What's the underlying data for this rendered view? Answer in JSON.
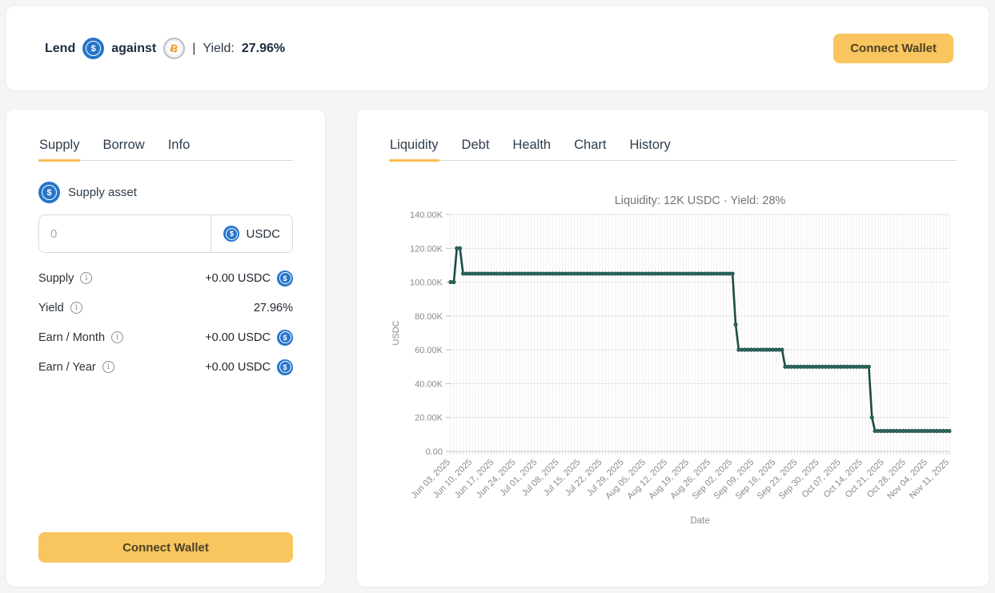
{
  "header": {
    "lend_label": "Lend",
    "against_label": "against",
    "separator": "|",
    "yield_label": "Yield:",
    "yield_value": "27.96%",
    "connect_wallet_label": "Connect Wallet"
  },
  "icons": {
    "usdc_glyph": "$",
    "btc_glyph": "Ƀ",
    "info_glyph": "i"
  },
  "left_panel": {
    "tabs": [
      {
        "label": "Supply",
        "active": true
      },
      {
        "label": "Borrow",
        "active": false
      },
      {
        "label": "Info",
        "active": false
      }
    ],
    "supply_asset_label": "Supply asset",
    "amount_input": {
      "value": "",
      "placeholder": "0"
    },
    "token_selector": {
      "label": "USDC"
    },
    "stats": [
      {
        "label": "Supply",
        "value": "+0.00 USDC"
      },
      {
        "label": "Yield",
        "value": "27.96%"
      },
      {
        "label": "Earn / Month",
        "value": "+0.00 USDC"
      },
      {
        "label": "Earn / Year",
        "value": "+0.00 USDC"
      }
    ],
    "connect_wallet_label": "Connect Wallet"
  },
  "right_panel": {
    "tabs": [
      {
        "label": "Liquidity",
        "active": true
      },
      {
        "label": "Debt",
        "active": false
      },
      {
        "label": "Health",
        "active": false
      },
      {
        "label": "Chart",
        "active": false
      },
      {
        "label": "History",
        "active": false
      }
    ]
  },
  "chart_data": {
    "type": "line",
    "title": "Liquidity: 12K USDC · Yield: 28%",
    "xlabel": "Date",
    "ylabel": "USDC",
    "ylim": [
      0,
      140000
    ],
    "y_tick_values": [
      0,
      20000,
      40000,
      60000,
      80000,
      100000,
      120000,
      140000
    ],
    "y_tick_labels": [
      "0.00",
      "20.00K",
      "40.00K",
      "60.00K",
      "80.00K",
      "100.00K",
      "120.00K",
      "140.00K"
    ],
    "start_date": "2025-06-03",
    "end_date": "2025-11-11",
    "point_interval": "daily",
    "x_tick_every_days": 7,
    "x_tick_labels": [
      "Jun 03, 2025",
      "Jun 10, 2025",
      "Jun 17, 2025",
      "Jun 24, 2025",
      "Jul 01, 2025",
      "Jul 08, 2025",
      "Jul 15, 2025",
      "Jul 22, 2025",
      "Jul 29, 2025",
      "Aug 05, 2025",
      "Aug 12, 2025",
      "Aug 19, 2025",
      "Aug 26, 2025",
      "Sep 02, 2025",
      "Sep 09, 2025",
      "Sep 16, 2025",
      "Sep 23, 2025",
      "Sep 30, 2025",
      "Oct 07, 2025",
      "Oct 14, 2025",
      "Oct 21, 2025",
      "Oct 28, 2025",
      "Nov 04, 2025",
      "Nov 11, 2025"
    ],
    "grid": {
      "horizontal": true,
      "vertical_daily": true
    },
    "legend": "none",
    "line_color": "#1b4c48",
    "marker_color": "#2e6a60",
    "series": [
      {
        "name": "Liquidity (USDC)",
        "segments": [
          {
            "from": "2025-06-03",
            "to": "2025-06-04",
            "value": 100000
          },
          {
            "from": "2025-06-05",
            "to": "2025-06-06",
            "value": 120000
          },
          {
            "from": "2025-06-07",
            "to": "2025-09-02",
            "value": 105000
          },
          {
            "from": "2025-09-03",
            "to": "2025-09-03",
            "value": 75000
          },
          {
            "from": "2025-09-04",
            "to": "2025-09-18",
            "value": 60000
          },
          {
            "from": "2025-09-19",
            "to": "2025-10-16",
            "value": 50000
          },
          {
            "from": "2025-10-17",
            "to": "2025-10-17",
            "value": 20000
          },
          {
            "from": "2025-10-18",
            "to": "2025-11-11",
            "value": 12000
          }
        ]
      }
    ]
  }
}
